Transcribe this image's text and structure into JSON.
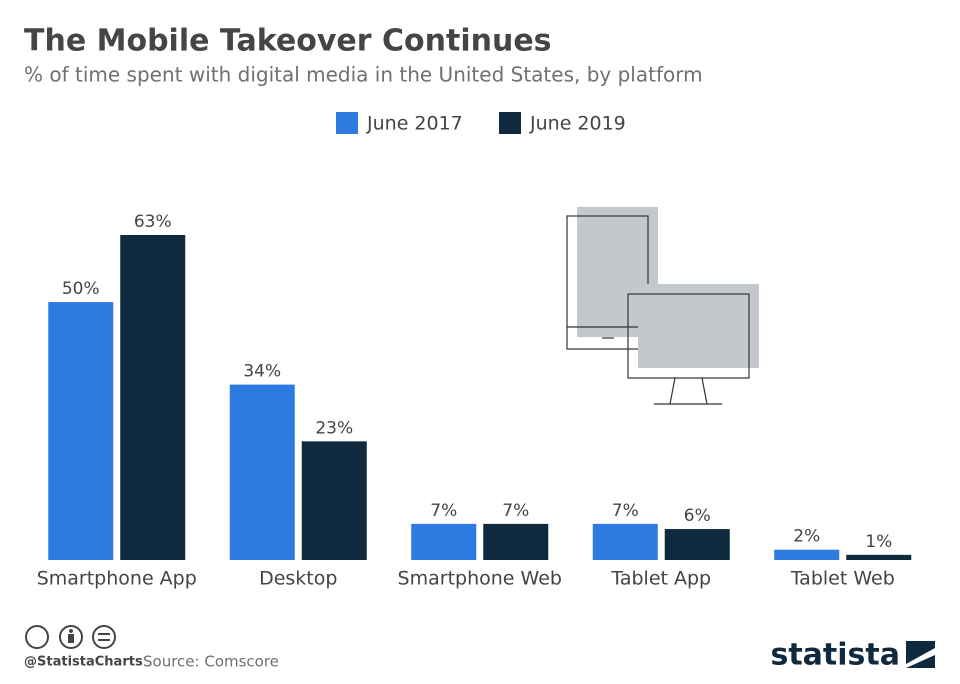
{
  "chart_data": {
    "type": "bar",
    "title": "The Mobile Takeover Continues",
    "subtitle": "% of time spent with digital media in the United States, by platform",
    "categories": [
      "Smartphone App",
      "Desktop",
      "Smartphone Web",
      "Tablet App",
      "Tablet Web"
    ],
    "series": [
      {
        "name": "June 2017",
        "color": "#2d7be0",
        "values": [
          50,
          34,
          7,
          7,
          2
        ],
        "value_labels": [
          "50%",
          "34%",
          "7%",
          "7%",
          "2%"
        ]
      },
      {
        "name": "June 2019",
        "color": "#0f2a3f",
        "values": [
          63,
          23,
          7,
          6,
          1
        ],
        "value_labels": [
          "63%",
          "23%",
          "7%",
          "6%",
          "1%"
        ]
      }
    ],
    "handle": "@StatistaCharts",
    "source": "Source: Comscore",
    "brand": "statista"
  }
}
